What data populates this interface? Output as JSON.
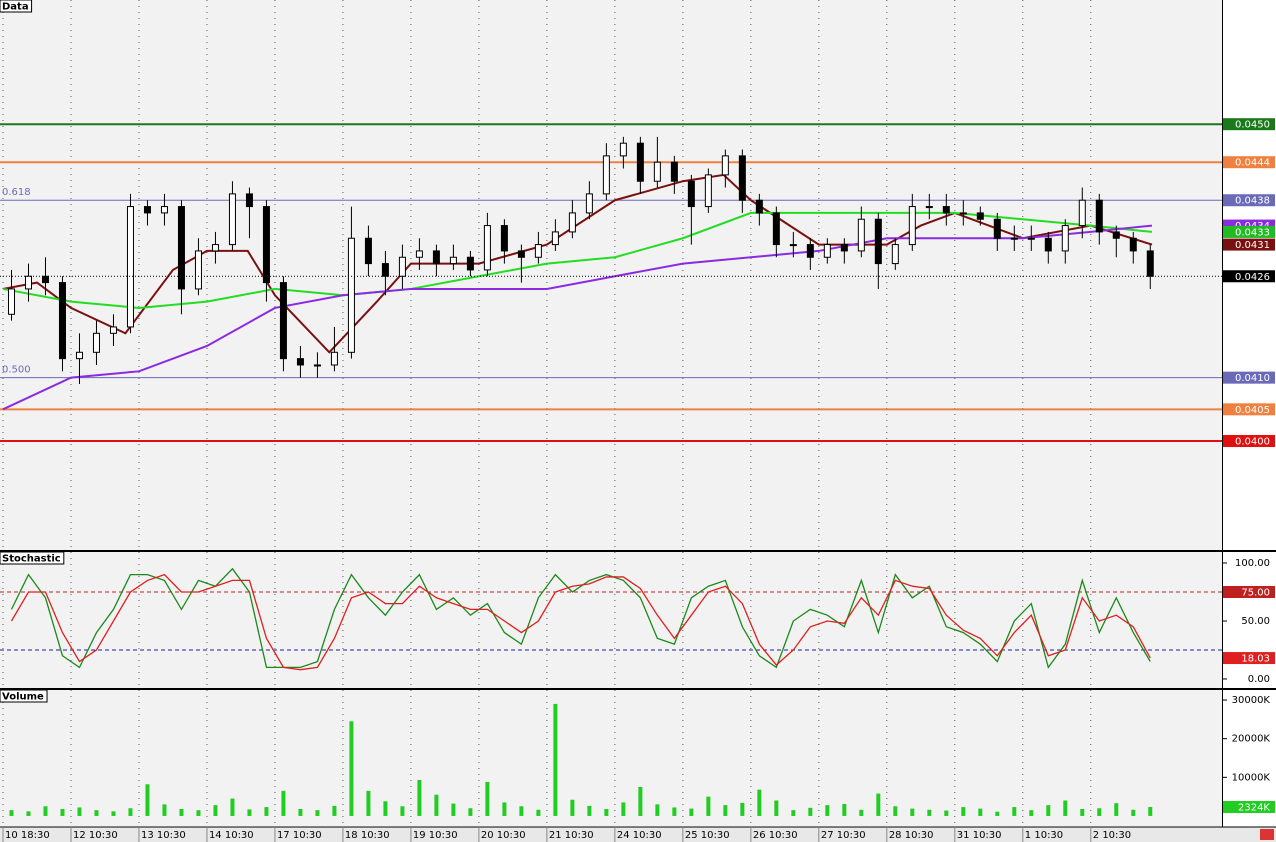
{
  "chart_data": [
    {
      "type": "candlestick",
      "title": "Data",
      "xlim": [
        -0.044,
        17.93
      ],
      "ylim": [
        0.03828,
        0.04696
      ],
      "x": [
        0.125,
        0.375,
        0.625,
        0.875,
        1.125,
        1.375,
        1.625,
        1.875,
        2.125,
        2.375,
        2.625,
        2.875,
        3.125,
        3.375,
        3.625,
        3.875,
        4.125,
        4.375,
        4.625,
        4.875,
        5.125,
        5.375,
        5.625,
        5.875,
        6.125,
        6.375,
        6.625,
        6.875,
        7.125,
        7.375,
        7.625,
        7.875,
        8.125,
        8.375,
        8.625,
        8.875,
        9.125,
        9.375,
        9.625,
        9.875,
        10.125,
        10.375,
        10.625,
        10.875,
        11.125,
        11.375,
        11.625,
        11.875,
        12.125,
        12.375,
        12.625,
        12.875,
        13.125,
        13.375,
        13.625,
        13.875,
        14.125,
        14.375,
        14.625,
        14.875,
        15.125,
        15.375,
        15.625,
        15.875,
        16.125,
        16.375,
        16.625,
        16.875
      ],
      "open": [
        0.042,
        0.0424,
        0.0426,
        0.0425,
        0.0413,
        0.0414,
        0.0417,
        0.0418,
        0.0437,
        0.0436,
        0.0437,
        0.0424,
        0.043,
        0.0431,
        0.0439,
        0.0437,
        0.0425,
        0.0413,
        0.0412,
        0.0412,
        0.0414,
        0.0432,
        0.0428,
        0.0426,
        0.0429,
        0.043,
        0.0428,
        0.0429,
        0.0427,
        0.0434,
        0.043,
        0.0429,
        0.0431,
        0.0433,
        0.0436,
        0.0439,
        0.0445,
        0.0447,
        0.0441,
        0.0444,
        0.0441,
        0.0437,
        0.0442,
        0.0445,
        0.0438,
        0.0436,
        0.0431,
        0.0431,
        0.0429,
        0.0431,
        0.043,
        0.0435,
        0.0428,
        0.0431,
        0.0437,
        0.0437,
        0.0436,
        0.0436,
        0.0435,
        0.0432,
        0.0432,
        0.0432,
        0.043,
        0.0434,
        0.0438,
        0.0433,
        0.0432,
        0.043
      ],
      "high": [
        0.0427,
        0.0428,
        0.0429,
        0.0426,
        0.0417,
        0.0419,
        0.042,
        0.0439,
        0.0438,
        0.0439,
        0.0438,
        0.0432,
        0.0433,
        0.0441,
        0.044,
        0.0438,
        0.0426,
        0.0415,
        0.0414,
        0.0418,
        0.0437,
        0.0434,
        0.043,
        0.0431,
        0.0432,
        0.0431,
        0.0431,
        0.043,
        0.0436,
        0.0435,
        0.0431,
        0.0433,
        0.0435,
        0.0438,
        0.0441,
        0.0447,
        0.0448,
        0.0448,
        0.0448,
        0.0445,
        0.0442,
        0.0443,
        0.0446,
        0.0446,
        0.0439,
        0.0437,
        0.0433,
        0.0432,
        0.0432,
        0.0432,
        0.0437,
        0.0436,
        0.0432,
        0.0439,
        0.0439,
        0.0439,
        0.0438,
        0.0437,
        0.0436,
        0.0434,
        0.0434,
        0.0433,
        0.0435,
        0.044,
        0.0439,
        0.0434,
        0.0433,
        0.0431
      ],
      "low": [
        0.0419,
        0.0422,
        0.0423,
        0.0411,
        0.0409,
        0.0412,
        0.0415,
        0.0417,
        0.0434,
        0.0434,
        0.042,
        0.0423,
        0.0428,
        0.043,
        0.0432,
        0.0422,
        0.0411,
        0.041,
        0.041,
        0.0411,
        0.0413,
        0.0426,
        0.0423,
        0.0424,
        0.0427,
        0.0426,
        0.0427,
        0.0426,
        0.0426,
        0.0428,
        0.0425,
        0.0428,
        0.043,
        0.0432,
        0.0435,
        0.0438,
        0.0443,
        0.0439,
        0.044,
        0.0439,
        0.0431,
        0.0436,
        0.044,
        0.0436,
        0.0434,
        0.0429,
        0.0429,
        0.0427,
        0.0428,
        0.0428,
        0.0429,
        0.0424,
        0.0427,
        0.043,
        0.0435,
        0.0434,
        0.0434,
        0.0434,
        0.043,
        0.043,
        0.043,
        0.0428,
        0.0428,
        0.0432,
        0.0431,
        0.0429,
        0.0428,
        0.0424
      ],
      "close": [
        0.0424,
        0.0426,
        0.0425,
        0.0413,
        0.0414,
        0.0417,
        0.0418,
        0.0437,
        0.0436,
        0.0437,
        0.0424,
        0.043,
        0.0431,
        0.0439,
        0.0437,
        0.0425,
        0.0413,
        0.0412,
        0.0412,
        0.0414,
        0.0432,
        0.0428,
        0.0426,
        0.0429,
        0.043,
        0.0428,
        0.0429,
        0.0427,
        0.0434,
        0.043,
        0.0429,
        0.0431,
        0.0433,
        0.0436,
        0.0439,
        0.0445,
        0.0447,
        0.0441,
        0.0444,
        0.0441,
        0.0437,
        0.0442,
        0.0445,
        0.0438,
        0.0436,
        0.0431,
        0.0431,
        0.0429,
        0.0431,
        0.043,
        0.0435,
        0.0428,
        0.0431,
        0.0437,
        0.0437,
        0.0436,
        0.0436,
        0.0435,
        0.0432,
        0.0432,
        0.0432,
        0.043,
        0.0434,
        0.0438,
        0.0433,
        0.0432,
        0.043,
        0.0426
      ],
      "series": [
        {
          "color": "#7a1010",
          "x": [
            0,
            0.5,
            1,
            1.8,
            2.5,
            3,
            3.6,
            4,
            4.8,
            5.5,
            6,
            7,
            8,
            9,
            10,
            10.6,
            11,
            12,
            13,
            13.5,
            14,
            15,
            16,
            16.9
          ],
          "values": [
            0.0424,
            0.0425,
            0.0421,
            0.0417,
            0.0427,
            0.043,
            0.043,
            0.0423,
            0.0414,
            0.0422,
            0.0428,
            0.0428,
            0.0431,
            0.0438,
            0.0441,
            0.0442,
            0.0438,
            0.0431,
            0.0431,
            0.0434,
            0.0436,
            0.0432,
            0.0434,
            0.0431
          ]
        },
        {
          "color": "#22dd22",
          "x": [
            0,
            1,
            2,
            3,
            4,
            5,
            6,
            7,
            8,
            9,
            10,
            11,
            12,
            13,
            14,
            15,
            16,
            16.9
          ],
          "values": [
            0.0424,
            0.0422,
            0.0421,
            0.0422,
            0.0424,
            0.0423,
            0.0424,
            0.0426,
            0.0428,
            0.0429,
            0.0432,
            0.0436,
            0.0436,
            0.0436,
            0.0436,
            0.0435,
            0.0434,
            0.0433
          ]
        },
        {
          "color": "#8a2be2",
          "x": [
            0,
            1,
            2,
            3,
            4,
            5,
            6,
            7,
            8,
            9,
            10,
            11,
            12,
            13,
            14,
            15,
            16,
            16.9
          ],
          "values": [
            0.0405,
            0.041,
            0.0411,
            0.0415,
            0.0421,
            0.0423,
            0.0424,
            0.0424,
            0.0424,
            0.0426,
            0.0428,
            0.0429,
            0.043,
            0.0432,
            0.0432,
            0.0432,
            0.0433,
            0.0434
          ]
        }
      ],
      "levels": [
        {
          "value": 0.045,
          "tag": "0.0450",
          "color": "#1a7a1a"
        },
        {
          "value": 0.0444,
          "tag": "0.0444",
          "color": "#f08040"
        },
        {
          "value": 0.0438,
          "tag": "0.0438",
          "label": "0.618",
          "color": "#6a6ab8"
        },
        {
          "value": 0.041,
          "tag": "0.0410",
          "label": "0.500",
          "color": "#6a6ab8"
        },
        {
          "value": 0.0405,
          "tag": "0.0405",
          "color": "#f08040"
        },
        {
          "value": 0.04,
          "tag": "0.0400",
          "color": "#e01010"
        }
      ],
      "tags": [
        {
          "value": 0.0434,
          "label": "0.0434",
          "color": "#8a2be2"
        },
        {
          "value": 0.0433,
          "label": "0.0433",
          "color": "#22bb22"
        },
        {
          "value": 0.0431,
          "label": "0.0431",
          "color": "#7a1010"
        }
      ],
      "last": {
        "value": 0.0426,
        "label": "0.0426",
        "color": "#000000"
      }
    },
    {
      "type": "line",
      "title": "Stochastic",
      "ylim": [
        -7.8,
        109.5
      ],
      "yticks": [
        {
          "value": 100,
          "label": "100.00"
        },
        {
          "value": 50,
          "label": "50.00"
        },
        {
          "value": 0,
          "label": "0.00"
        }
      ],
      "series": [
        {
          "color": "#1a8a1a",
          "values": [
            60,
            90,
            70,
            20,
            10,
            40,
            60,
            90,
            90,
            85,
            60,
            85,
            80,
            95,
            75,
            10,
            10,
            10,
            15,
            60,
            90,
            70,
            55,
            75,
            90,
            60,
            70,
            55,
            65,
            40,
            30,
            70,
            90,
            75,
            85,
            90,
            85,
            70,
            35,
            30,
            70,
            80,
            85,
            45,
            20,
            10,
            50,
            60,
            55,
            45,
            85,
            40,
            90,
            70,
            80,
            45,
            40,
            30,
            15,
            50,
            65,
            10,
            30,
            85,
            40,
            70,
            40,
            15
          ]
        },
        {
          "color": "#e02020",
          "values": [
            50,
            75,
            75,
            40,
            15,
            25,
            50,
            75,
            85,
            90,
            75,
            75,
            80,
            85,
            85,
            35,
            10,
            8,
            10,
            35,
            70,
            75,
            65,
            65,
            80,
            70,
            65,
            60,
            60,
            50,
            40,
            50,
            75,
            80,
            82,
            88,
            88,
            78,
            55,
            35,
            55,
            75,
            80,
            65,
            30,
            12,
            25,
            45,
            50,
            48,
            70,
            55,
            85,
            80,
            78,
            55,
            42,
            35,
            20,
            40,
            55,
            20,
            25,
            70,
            50,
            55,
            45,
            18.03
          ]
        }
      ],
      "levels": [
        {
          "value": 75,
          "tag": "75.00",
          "color": "#c02020"
        },
        {
          "value": 25,
          "color": "#2020a0"
        }
      ],
      "last": {
        "value": 18.03,
        "label": "18.03",
        "color": "#e02020"
      }
    },
    {
      "type": "bar",
      "title": "Volume",
      "color": "#22cc22",
      "ylim": [
        -2600,
        32600
      ],
      "yticks": [
        {
          "value": 30000,
          "label": "30000K"
        },
        {
          "value": 20000,
          "label": "20000K"
        },
        {
          "value": 10000,
          "label": "10000K"
        }
      ],
      "values": [
        1500,
        1200,
        2500,
        1800,
        2200,
        1500,
        1200,
        2000,
        8200,
        3000,
        1800,
        1500,
        2800,
        4500,
        1700,
        2300,
        6500,
        1800,
        1500,
        2600,
        24500,
        6500,
        3800,
        2500,
        9300,
        5500,
        3200,
        2000,
        8800,
        3500,
        2500,
        1600,
        29000,
        4200,
        2600,
        1800,
        3500,
        7500,
        3000,
        2200,
        1900,
        5000,
        2800,
        3400,
        6800,
        4000,
        1500,
        2100,
        2800,
        3100,
        1600,
        5800,
        2500,
        1900,
        1600,
        1400,
        2300,
        1900,
        1100,
        2300,
        1500,
        2800,
        4000,
        1800,
        2000,
        3300,
        1600,
        2324
      ],
      "last": {
        "value": 2324,
        "label": "2324K",
        "color": "#22cc22"
      },
      "xticks": [
        {
          "value": 0,
          "label": "10 18:30"
        },
        {
          "value": 1,
          "label": "12 10:30"
        },
        {
          "value": 2,
          "label": "13 10:30"
        },
        {
          "value": 3,
          "label": "14 10:30"
        },
        {
          "value": 4,
          "label": "17 10:30"
        },
        {
          "value": 5,
          "label": "18 10:30"
        },
        {
          "value": 6,
          "label": "19 10:30"
        },
        {
          "value": 7,
          "label": "20 10:30"
        },
        {
          "value": 8,
          "label": "21 10:30"
        },
        {
          "value": 9,
          "label": "24 10:30"
        },
        {
          "value": 10,
          "label": "25 10:30"
        },
        {
          "value": 11,
          "label": "26 10:30"
        },
        {
          "value": 12,
          "label": "27 10:30"
        },
        {
          "value": 13,
          "label": "28 10:30"
        },
        {
          "value": 14,
          "label": "31 10:30"
        },
        {
          "value": 15,
          "label": "1 10:30"
        },
        {
          "value": 16,
          "label": "2 10:30"
        }
      ]
    }
  ]
}
